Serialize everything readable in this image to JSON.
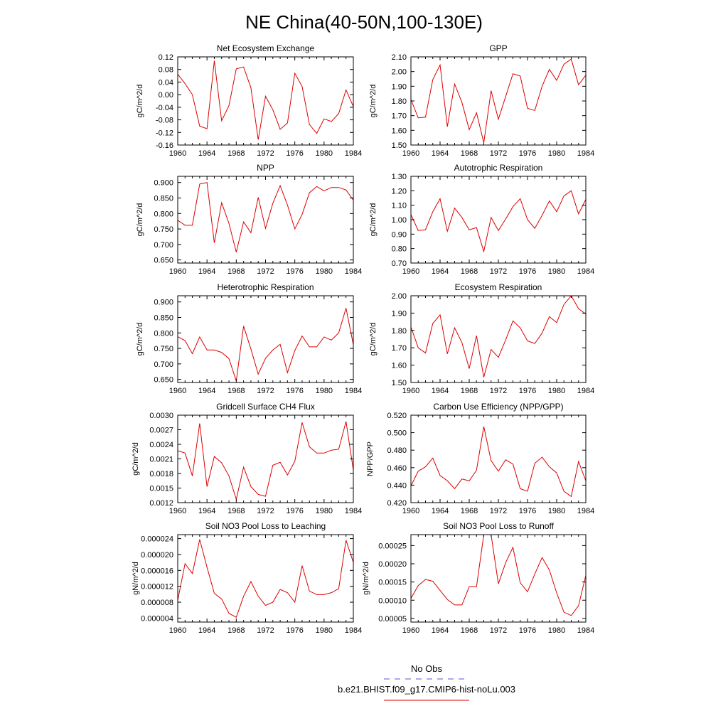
{
  "figure": {
    "title": "NE China(40-50N,100-130E)",
    "legend": {
      "entries": [
        {
          "label": "No Obs",
          "color": "#5555cc",
          "dash": true
        },
        {
          "label": "b.e21.BHIST.f09_g17.CMIP6-hist-noLu.003",
          "color": "#dd0000",
          "dash": false
        }
      ]
    }
  },
  "chart_data": [
    {
      "type": "line",
      "title": "Net Ecosystem Exchange",
      "ylabel": "gC/m^2/d",
      "xlim": [
        1960,
        1984
      ],
      "xticks": [
        1960,
        1964,
        1968,
        1972,
        1976,
        1980,
        1984
      ],
      "ylim": [
        -0.16,
        0.12
      ],
      "yticks": [
        "0.12",
        "0.08",
        "0.04",
        "0.00",
        "-0.04",
        "-0.08",
        "-0.12",
        "-0.16"
      ],
      "yticks_values": [
        0.12,
        0.08,
        0.04,
        0.0,
        -0.04,
        -0.08,
        -0.12,
        -0.16
      ],
      "x": [
        1960,
        1961,
        1962,
        1963,
        1964,
        1965,
        1966,
        1967,
        1968,
        1969,
        1970,
        1971,
        1972,
        1973,
        1974,
        1975,
        1976,
        1977,
        1978,
        1979,
        1980,
        1981,
        1982,
        1983,
        1984
      ],
      "series": [
        {
          "color": "#dd0000",
          "values": [
            0.065,
            0.035,
            0.0,
            -0.1,
            -0.108,
            0.108,
            -0.083,
            -0.035,
            0.082,
            0.088,
            0.022,
            -0.143,
            -0.005,
            -0.048,
            -0.11,
            -0.09,
            0.068,
            0.026,
            -0.095,
            -0.123,
            -0.077,
            -0.085,
            -0.06,
            0.015,
            -0.038
          ]
        }
      ]
    },
    {
      "type": "line",
      "title": "GPP",
      "ylabel": "gC/m^2/d",
      "xlim": [
        1960,
        1984
      ],
      "xticks": [
        1960,
        1964,
        1968,
        1972,
        1976,
        1980,
        1984
      ],
      "ylim": [
        1.5,
        2.1
      ],
      "yticks": [
        "2.10",
        "2.00",
        "1.90",
        "1.80",
        "1.70",
        "1.60",
        "1.50"
      ],
      "yticks_values": [
        2.1,
        2.0,
        1.9,
        1.8,
        1.7,
        1.6,
        1.5
      ],
      "x": [
        1960,
        1961,
        1962,
        1963,
        1964,
        1965,
        1966,
        1967,
        1968,
        1969,
        1970,
        1971,
        1972,
        1973,
        1974,
        1975,
        1976,
        1977,
        1978,
        1979,
        1980,
        1981,
        1982,
        1983,
        1984
      ],
      "series": [
        {
          "color": "#dd0000",
          "values": [
            1.81,
            1.685,
            1.69,
            1.945,
            2.045,
            1.625,
            1.915,
            1.79,
            1.605,
            1.72,
            1.515,
            1.87,
            1.675,
            1.83,
            1.985,
            1.97,
            1.75,
            1.735,
            1.9,
            2.015,
            1.94,
            2.05,
            2.085,
            1.91,
            1.975
          ]
        }
      ]
    },
    {
      "type": "line",
      "title": "NPP",
      "ylabel": "gC/m^2/d",
      "xlim": [
        1960,
        1984
      ],
      "xticks": [
        1960,
        1964,
        1968,
        1972,
        1976,
        1980,
        1984
      ],
      "ylim": [
        0.64,
        0.92
      ],
      "yticks": [
        "0.900",
        "0.850",
        "0.800",
        "0.750",
        "0.700",
        "0.650"
      ],
      "yticks_values": [
        0.9,
        0.85,
        0.8,
        0.75,
        0.7,
        0.65
      ],
      "x": [
        1960,
        1961,
        1962,
        1963,
        1964,
        1965,
        1966,
        1967,
        1968,
        1969,
        1970,
        1971,
        1972,
        1973,
        1974,
        1975,
        1976,
        1977,
        1978,
        1979,
        1980,
        1981,
        1982,
        1983,
        1984
      ],
      "series": [
        {
          "color": "#dd0000",
          "values": [
            0.778,
            0.762,
            0.762,
            0.895,
            0.9,
            0.705,
            0.835,
            0.768,
            0.675,
            0.773,
            0.738,
            0.852,
            0.752,
            0.833,
            0.89,
            0.827,
            0.75,
            0.797,
            0.867,
            0.887,
            0.873,
            0.884,
            0.884,
            0.876,
            0.843
          ]
        }
      ]
    },
    {
      "type": "line",
      "title": "Autotrophic Respiration",
      "ylabel": "gC/m^2/d",
      "xlim": [
        1960,
        1984
      ],
      "xticks": [
        1960,
        1964,
        1968,
        1972,
        1976,
        1980,
        1984
      ],
      "ylim": [
        0.7,
        1.3
      ],
      "yticks": [
        "1.30",
        "1.20",
        "1.10",
        "1.00",
        "0.90",
        "0.80",
        "0.70"
      ],
      "yticks_values": [
        1.3,
        1.2,
        1.1,
        1.0,
        0.9,
        0.8,
        0.7
      ],
      "x": [
        1960,
        1961,
        1962,
        1963,
        1964,
        1965,
        1966,
        1967,
        1968,
        1969,
        1970,
        1971,
        1972,
        1973,
        1974,
        1975,
        1976,
        1977,
        1978,
        1979,
        1980,
        1981,
        1982,
        1983,
        1984
      ],
      "series": [
        {
          "color": "#dd0000",
          "values": [
            1.035,
            0.925,
            0.93,
            1.055,
            1.145,
            0.92,
            1.08,
            1.015,
            0.93,
            0.945,
            0.78,
            1.015,
            0.925,
            1.005,
            1.09,
            1.145,
            1.0,
            0.94,
            1.03,
            1.13,
            1.055,
            1.165,
            1.2,
            1.04,
            1.14
          ]
        }
      ]
    },
    {
      "type": "line",
      "title": "Heterotrophic Respiration",
      "ylabel": "gC/m^2/d",
      "xlim": [
        1960,
        1984
      ],
      "xticks": [
        1960,
        1964,
        1968,
        1972,
        1976,
        1980,
        1984
      ],
      "ylim": [
        0.64,
        0.92
      ],
      "yticks": [
        "0.900",
        "0.850",
        "0.800",
        "0.750",
        "0.700",
        "0.650"
      ],
      "yticks_values": [
        0.9,
        0.85,
        0.8,
        0.75,
        0.7,
        0.65
      ],
      "x": [
        1960,
        1961,
        1962,
        1963,
        1964,
        1965,
        1966,
        1967,
        1968,
        1969,
        1970,
        1971,
        1972,
        1973,
        1974,
        1975,
        1976,
        1977,
        1978,
        1979,
        1980,
        1981,
        1982,
        1983,
        1984
      ],
      "series": [
        {
          "color": "#dd0000",
          "values": [
            0.788,
            0.775,
            0.733,
            0.787,
            0.745,
            0.745,
            0.737,
            0.717,
            0.645,
            0.822,
            0.748,
            0.667,
            0.718,
            0.745,
            0.763,
            0.672,
            0.743,
            0.79,
            0.755,
            0.755,
            0.787,
            0.777,
            0.8,
            0.88,
            0.762
          ]
        }
      ]
    },
    {
      "type": "line",
      "title": "Ecosystem Respiration",
      "ylabel": "gC/m^2/d",
      "xlim": [
        1960,
        1984
      ],
      "xticks": [
        1960,
        1964,
        1968,
        1972,
        1976,
        1980,
        1984
      ],
      "ylim": [
        1.5,
        2.0
      ],
      "yticks": [
        "2.00",
        "1.90",
        "1.80",
        "1.70",
        "1.60",
        "1.50"
      ],
      "yticks_values": [
        2.0,
        1.9,
        1.8,
        1.7,
        1.6,
        1.5
      ],
      "x": [
        1960,
        1961,
        1962,
        1963,
        1964,
        1965,
        1966,
        1967,
        1968,
        1969,
        1970,
        1971,
        1972,
        1973,
        1974,
        1975,
        1976,
        1977,
        1978,
        1979,
        1980,
        1981,
        1982,
        1983,
        1984
      ],
      "series": [
        {
          "color": "#dd0000",
          "values": [
            1.82,
            1.7,
            1.67,
            1.84,
            1.89,
            1.665,
            1.815,
            1.73,
            1.58,
            1.77,
            1.53,
            1.69,
            1.645,
            1.745,
            1.855,
            1.815,
            1.74,
            1.725,
            1.785,
            1.88,
            1.845,
            1.95,
            2.0,
            1.925,
            1.895
          ]
        }
      ]
    },
    {
      "type": "line",
      "title": "Gridcell Surface CH4 Flux",
      "ylabel": "gC/m^2/d",
      "xlim": [
        1960,
        1984
      ],
      "xticks": [
        1960,
        1964,
        1968,
        1972,
        1976,
        1980,
        1984
      ],
      "ylim": [
        0.0012,
        0.003
      ],
      "yticks": [
        "0.0030",
        "0.0027",
        "0.0024",
        "0.0021",
        "0.0018",
        "0.0015",
        "0.0012"
      ],
      "yticks_values": [
        0.003,
        0.0027,
        0.0024,
        0.0021,
        0.0018,
        0.0015,
        0.0012
      ],
      "x": [
        1960,
        1961,
        1962,
        1963,
        1964,
        1965,
        1966,
        1967,
        1968,
        1969,
        1970,
        1971,
        1972,
        1973,
        1974,
        1975,
        1976,
        1977,
        1978,
        1979,
        1980,
        1981,
        1982,
        1983,
        1984
      ],
      "series": [
        {
          "color": "#dd0000",
          "values": [
            0.00227,
            0.00222,
            0.00175,
            0.00283,
            0.00153,
            0.00215,
            0.00202,
            0.00175,
            0.00127,
            0.00193,
            0.00153,
            0.00137,
            0.00133,
            0.00197,
            0.00203,
            0.00177,
            0.00205,
            0.00285,
            0.00235,
            0.00222,
            0.00222,
            0.00228,
            0.0023,
            0.00287,
            0.00187
          ]
        }
      ]
    },
    {
      "type": "line",
      "title": "Carbon Use Efficiency (NPP/GPP)",
      "ylabel": "NPP/GPP",
      "xlim": [
        1960,
        1984
      ],
      "xticks": [
        1960,
        1964,
        1968,
        1972,
        1976,
        1980,
        1984
      ],
      "ylim": [
        0.42,
        0.52
      ],
      "yticks": [
        "0.520",
        "0.500",
        "0.480",
        "0.460",
        "0.440",
        "0.420"
      ],
      "yticks_values": [
        0.52,
        0.5,
        0.48,
        0.46,
        0.44,
        0.42
      ],
      "x": [
        1960,
        1961,
        1962,
        1963,
        1964,
        1965,
        1966,
        1967,
        1968,
        1969,
        1970,
        1971,
        1972,
        1973,
        1974,
        1975,
        1976,
        1977,
        1978,
        1979,
        1980,
        1981,
        1982,
        1983,
        1984
      ],
      "series": [
        {
          "color": "#dd0000",
          "values": [
            0.439,
            0.456,
            0.461,
            0.471,
            0.451,
            0.445,
            0.436,
            0.447,
            0.445,
            0.457,
            0.507,
            0.468,
            0.456,
            0.469,
            0.464,
            0.436,
            0.433,
            0.465,
            0.472,
            0.461,
            0.454,
            0.433,
            0.427,
            0.467,
            0.445
          ]
        }
      ]
    },
    {
      "type": "line",
      "title": "Soil NO3 Pool Loss to Leaching",
      "ylabel": "gN/m^2/d",
      "xlim": [
        1960,
        1984
      ],
      "xticks": [
        1960,
        1964,
        1968,
        1972,
        1976,
        1980,
        1984
      ],
      "ylim": [
        3e-06,
        2.5e-05
      ],
      "yticks": [
        "0.000024",
        "0.000020",
        "0.000016",
        "0.000012",
        "0.000008",
        "0.000004"
      ],
      "yticks_values": [
        2.4e-05,
        2e-05,
        1.6e-05,
        1.2e-05,
        8e-06,
        4e-06
      ],
      "x": [
        1960,
        1961,
        1962,
        1963,
        1964,
        1965,
        1966,
        1967,
        1968,
        1969,
        1970,
        1971,
        1972,
        1973,
        1974,
        1975,
        1976,
        1977,
        1978,
        1979,
        1980,
        1981,
        1982,
        1983,
        1984
      ],
      "series": [
        {
          "color": "#dd0000",
          "values": [
            8.5e-06,
            1.77e-05,
            1.52e-05,
            2.38e-05,
            1.68e-05,
            1.02e-05,
            8.8e-06,
            5.2e-06,
            4.2e-06,
            9.5e-06,
            1.32e-05,
            9.5e-06,
            7.2e-06,
            8e-06,
            1.12e-05,
            1.04e-05,
            8e-06,
            1.72e-05,
            1.08e-05,
            9.9e-06,
            9.9e-06,
            1.04e-05,
            1.14e-05,
            2.36e-05,
            1.8e-05
          ]
        }
      ]
    },
    {
      "type": "line",
      "title": "Soil NO3 Pool Loss to Runoff",
      "ylabel": "gN/m^2/d",
      "xlim": [
        1960,
        1984
      ],
      "xticks": [
        1960,
        1964,
        1968,
        1972,
        1976,
        1980,
        1984
      ],
      "ylim": [
        4e-05,
        0.00028
      ],
      "yticks": [
        "0.00025",
        "0.00020",
        "0.00015",
        "0.00010",
        "0.00005"
      ],
      "yticks_values": [
        0.00025,
        0.0002,
        0.00015,
        0.0001,
        5e-05
      ],
      "x": [
        1960,
        1961,
        1962,
        1963,
        1964,
        1965,
        1966,
        1967,
        1968,
        1969,
        1970,
        1971,
        1972,
        1973,
        1974,
        1975,
        1976,
        1977,
        1978,
        1979,
        1980,
        1981,
        1982,
        1983,
        1984
      ],
      "series": [
        {
          "color": "#dd0000",
          "values": [
            0.000105,
            0.00014,
            0.000157,
            0.000152,
            0.000127,
            0.000102,
            8.7e-05,
            8.7e-05,
            0.000137,
            0.000137,
            0.00028,
            0.00028,
            0.000145,
            0.000203,
            0.000245,
            0.000148,
            0.000123,
            0.000172,
            0.000217,
            0.000183,
            0.00012,
            6.7e-05,
            5.8e-05,
            8.5e-05,
            0.000168
          ]
        }
      ]
    }
  ]
}
